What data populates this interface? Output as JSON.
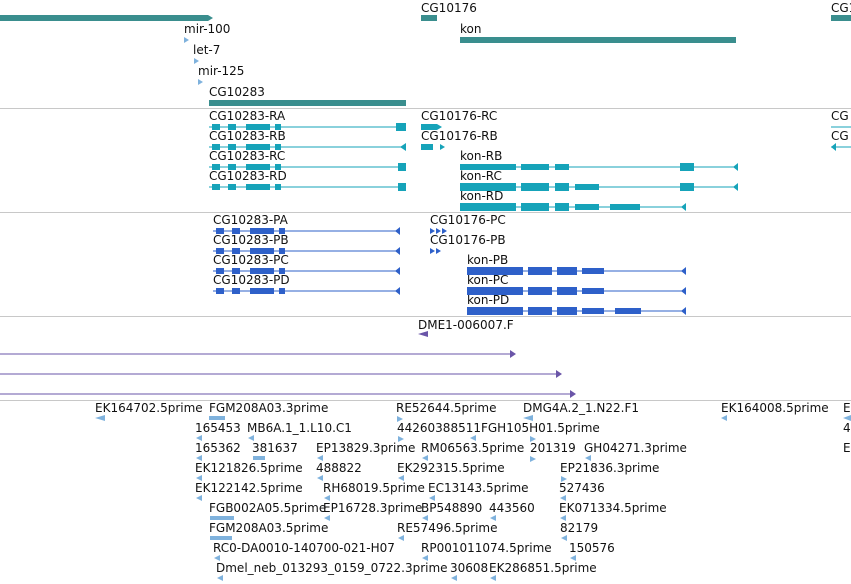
{
  "colors": {
    "gene": "#3a8e8e",
    "transcript": "#16a3b9",
    "protein": "#2e60c9",
    "contig": "#6a55a8",
    "est": "#7fb2dd",
    "separator": "#c8c8c8"
  },
  "genes": {
    "mir100": "mir-100",
    "let7": "let-7",
    "mir125": "mir-125",
    "cg10283": "CG10283",
    "cg10176": "CG10176",
    "kon": "kon",
    "cg_cut": "CG1"
  },
  "transcripts": {
    "ra": "CG10283-RA",
    "rb": "CG10283-RB",
    "rc": "CG10283-RC",
    "rd": "CG10283-RD",
    "cg10176_rc": "CG10176-RC",
    "cg10176_rb": "CG10176-RB",
    "kon_rb": "kon-RB",
    "kon_rc": "kon-RC",
    "kon_rd": "kon-RD",
    "cut1": "CG",
    "cut2": "CG"
  },
  "proteins": {
    "pa": "CG10283-PA",
    "pb": "CG10283-PB",
    "pc": "CG10283-PC",
    "pd": "CG10283-PD",
    "cg10176_pc": "CG10176-PC",
    "cg10176_pb": "CG10176-PB",
    "kon_pb": "kon-PB",
    "kon_pc": "kon-PC",
    "kon_pd": "kon-PD"
  },
  "contig": {
    "label": "DME1-006007.F"
  },
  "ests": {
    "row1": [
      "EK164702.5prime",
      "FGM208A03.3prime",
      "RE52644.5prime",
      "DMG4A.2_1.N22.F1",
      "EK164008.5prime",
      "E"
    ],
    "row2": [
      "165453",
      "MB6A.1_1.L10.C1",
      "44260388511FGH105H01.5prime",
      "4"
    ],
    "row3": [
      "165362",
      "381637",
      "EP13829.3prime",
      "RM06563.5prime",
      "201319",
      "GH04271.3prime",
      "E"
    ],
    "row4": [
      "EK121826.5prime",
      "488822",
      "EK292315.5prime",
      "EP21836.3prime"
    ],
    "row5": [
      "EK122142.5prime",
      "RH68019.5prime",
      "EC13143.5prime",
      "527436"
    ],
    "row6": [
      "FGB002A05.5prime",
      "EP16728.3prime",
      "BP548890",
      "443560",
      "EK071334.5prime"
    ],
    "row7": [
      "FGM208A03.5prime",
      "RE57496.5prime",
      "82179"
    ],
    "row8": [
      "RC0-DA0010-140700-021-H07",
      "RP001011074.5prime",
      "150576"
    ],
    "row9": [
      "Dmel_neb_013293_0159_0722.3prime",
      "30608",
      "EK286851.5prime"
    ]
  }
}
